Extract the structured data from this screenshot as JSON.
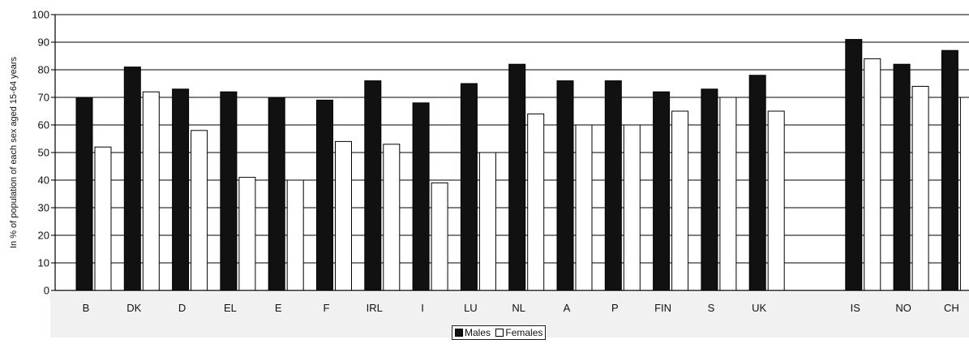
{
  "chart_data": {
    "type": "bar",
    "ylabel": "In % of population of each sex aged 15-64 years",
    "ylim": [
      0,
      100
    ],
    "yticks": [
      0,
      10,
      20,
      30,
      40,
      50,
      60,
      70,
      80,
      90,
      100
    ],
    "grid": true,
    "legend_position": "bottom-center",
    "categories": [
      "B",
      "DK",
      "D",
      "EL",
      "E",
      "F",
      "IRL",
      "I",
      "LU",
      "NL",
      "A",
      "P",
      "FIN",
      "S",
      "UK",
      "IS",
      "NO",
      "CH"
    ],
    "series": [
      {
        "name": "Males",
        "color": "#111111",
        "values": [
          70,
          81,
          73,
          72,
          70,
          69,
          76,
          68,
          75,
          82,
          76,
          76,
          72,
          73,
          78,
          91,
          82,
          87
        ]
      },
      {
        "name": "Females",
        "color": "#ffffff",
        "values": [
          52,
          72,
          58,
          41,
          40,
          54,
          53,
          39,
          50,
          64,
          60,
          60,
          65,
          70,
          65,
          84,
          74,
          70
        ]
      }
    ]
  }
}
